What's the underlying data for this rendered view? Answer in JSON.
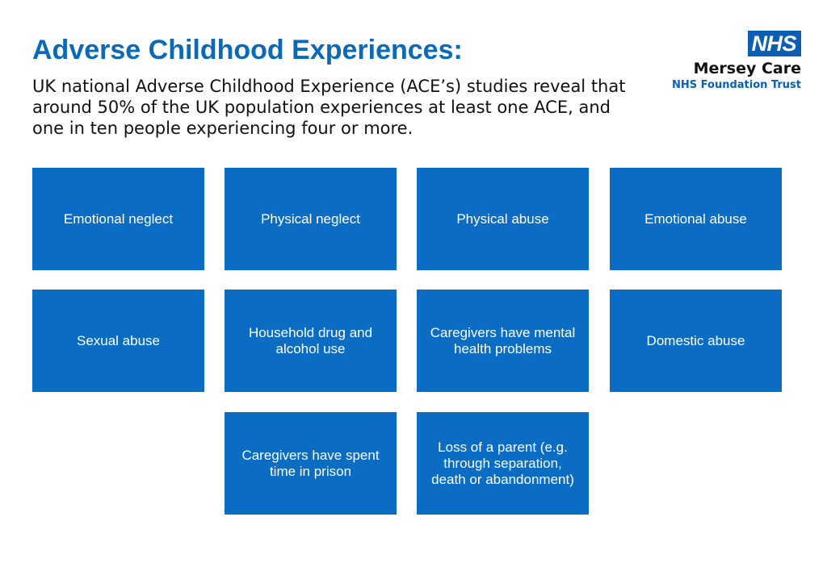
{
  "header": {
    "title": "Adverse Childhood Experiences:",
    "intro": "UK national Adverse Childhood Experience (ACE’s) studies reveal that around 50% of the UK population experiences at least one ACE, and one in ten people experiencing four or more."
  },
  "logo": {
    "mark": "NHS",
    "org_name": "Mersey Care",
    "org_sub": "NHS Foundation Trust",
    "brand_color": "#0a5fb4"
  },
  "aces": [
    "Emotional neglect",
    "Physical neglect",
    "Physical abuse",
    "Emotional abuse",
    "Sexual abuse",
    "Household drug and alcohol use",
    "Caregivers have mental health problems",
    "Domestic abuse",
    "Caregivers have spent time in prison",
    "Loss of a parent (e.g. through separation, death or abandonment)"
  ],
  "colors": {
    "title": "#0a6ab8",
    "box_fill": "#0a6cc2",
    "box_text": "#ffffff"
  }
}
